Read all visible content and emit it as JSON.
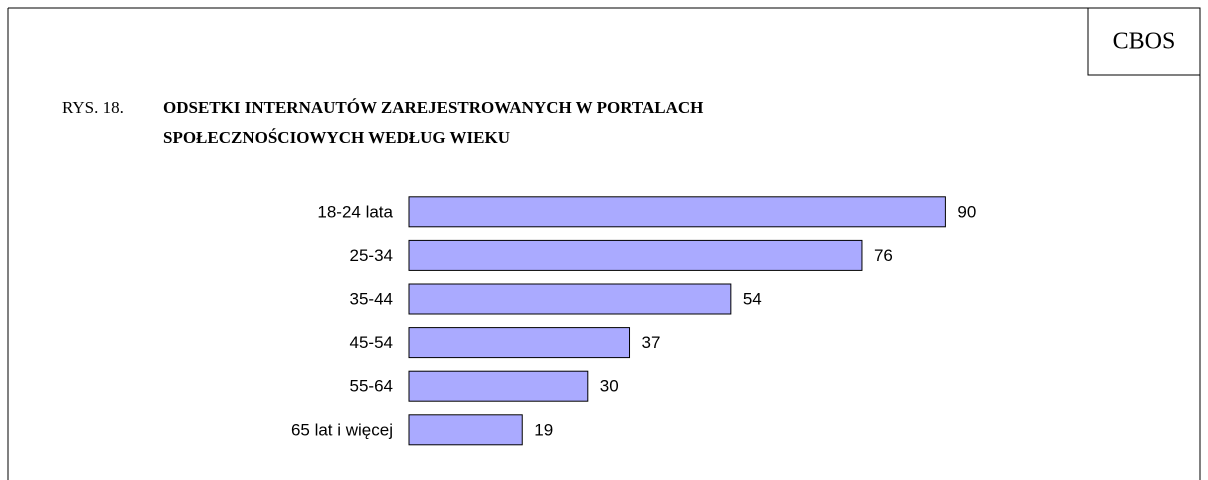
{
  "badge": "CBOS",
  "chart_data": {
    "type": "bar",
    "orientation": "horizontal",
    "figure_label": "RYS. 18.",
    "title_lines": [
      "ODSETKI INTERNAUTÓW ZAREJESTROWANYCH W PORTALACH",
      "SPOŁECZNOŚCIOWYCH WEDŁUG WIEKU"
    ],
    "categories": [
      "18-24 lata",
      "25-34",
      "35-44",
      "45-54",
      "55-64",
      "65 lat i więcej"
    ],
    "values": [
      90,
      76,
      54,
      37,
      30,
      19
    ],
    "color": "#aaaaff",
    "xlim": [
      0,
      100
    ]
  }
}
